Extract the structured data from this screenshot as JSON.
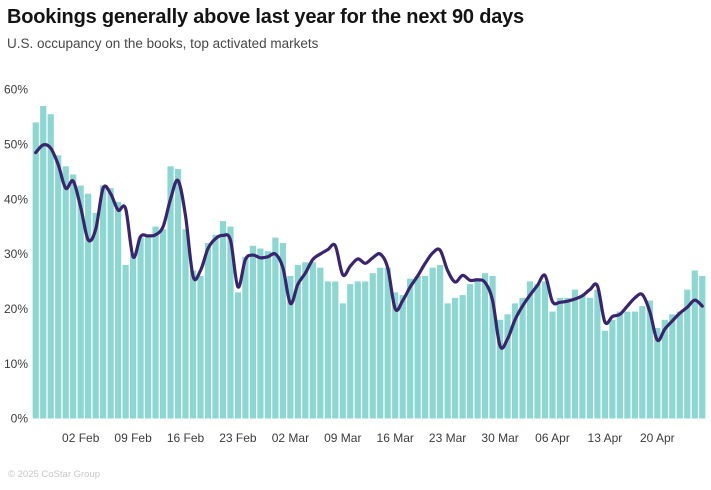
{
  "header": {
    "title": "Bookings generally above last year for the next 90 days",
    "subtitle": "U.S. occupancy on the books, top activated markets"
  },
  "footer": {
    "copyright": "© 2025 CoStar Group"
  },
  "colors": {
    "background": "#ffffff",
    "bar": "#8CD7D1",
    "line": "#3A2470",
    "title_text": "#141414",
    "subtitle_text": "#474747",
    "axis_text": "#3c3c3c",
    "footer_text": "#c6c6c6"
  },
  "chart_data": {
    "type": "combo",
    "title": "Bookings generally above last year for the next 90 days",
    "subtitle": "U.S. occupancy on the books, top activated markets",
    "xlabel": "",
    "ylabel": "",
    "ylim": [
      0,
      60
    ],
    "grid": false,
    "legend": false,
    "y_ticks": [
      0,
      10,
      20,
      30,
      40,
      50,
      60
    ],
    "y_tick_labels": [
      "0%",
      "10%",
      "20%",
      "30%",
      "40%",
      "50%",
      "60%"
    ],
    "x_tick_indices": [
      6,
      13,
      20,
      27,
      34,
      41,
      48,
      55,
      62,
      69,
      76,
      83
    ],
    "x_tick_labels": [
      "02 Feb",
      "09 Feb",
      "16 Feb",
      "23 Feb",
      "02 Mar",
      "09 Mar",
      "16 Mar",
      "23 Mar",
      "30 Mar",
      "06 Apr",
      "13 Apr",
      "20 Apr"
    ],
    "categories": [
      "27 Jan",
      "28 Jan",
      "29 Jan",
      "30 Jan",
      "31 Jan",
      "01 Feb",
      "02 Feb",
      "03 Feb",
      "04 Feb",
      "05 Feb",
      "06 Feb",
      "07 Feb",
      "08 Feb",
      "09 Feb",
      "10 Feb",
      "11 Feb",
      "12 Feb",
      "13 Feb",
      "14 Feb",
      "15 Feb",
      "16 Feb",
      "17 Feb",
      "18 Feb",
      "19 Feb",
      "20 Feb",
      "21 Feb",
      "22 Feb",
      "23 Feb",
      "24 Feb",
      "25 Feb",
      "26 Feb",
      "27 Feb",
      "28 Feb",
      "01 Mar",
      "02 Mar",
      "03 Mar",
      "04 Mar",
      "05 Mar",
      "06 Mar",
      "07 Mar",
      "08 Mar",
      "09 Mar",
      "10 Mar",
      "11 Mar",
      "12 Mar",
      "13 Mar",
      "14 Mar",
      "15 Mar",
      "16 Mar",
      "17 Mar",
      "18 Mar",
      "19 Mar",
      "20 Mar",
      "21 Mar",
      "22 Mar",
      "23 Mar",
      "24 Mar",
      "25 Mar",
      "26 Mar",
      "27 Mar",
      "28 Mar",
      "29 Mar",
      "30 Mar",
      "31 Mar",
      "01 Apr",
      "02 Apr",
      "03 Apr",
      "04 Apr",
      "05 Apr",
      "06 Apr",
      "07 Apr",
      "08 Apr",
      "09 Apr",
      "10 Apr",
      "11 Apr",
      "12 Apr",
      "13 Apr",
      "14 Apr",
      "15 Apr",
      "16 Apr",
      "17 Apr",
      "18 Apr",
      "19 Apr",
      "20 Apr",
      "21 Apr",
      "22 Apr",
      "23 Apr",
      "24 Apr",
      "25 Apr",
      "26 Apr"
    ],
    "series": [
      {
        "name": "occupancy_on_books_bars",
        "render": "bar",
        "unit": "%",
        "values": [
          54,
          57,
          55.5,
          48,
          46,
          44.5,
          42.5,
          41,
          37.5,
          42.5,
          42,
          39.5,
          28,
          30,
          33,
          33.5,
          35,
          34.5,
          46,
          45.5,
          34.5,
          27,
          26,
          32,
          33.5,
          36,
          35,
          23,
          29.5,
          31.5,
          31,
          30.5,
          33,
          32,
          26,
          28,
          28.5,
          28.5,
          27.5,
          25,
          25,
          21,
          24.5,
          25,
          25,
          26.5,
          27.5,
          27.5,
          23,
          22.5,
          25.5,
          26,
          26,
          27.5,
          28,
          21,
          22,
          22.5,
          24.5,
          25.5,
          26.5,
          26,
          18,
          19,
          21,
          22,
          25,
          24.5,
          25,
          19.5,
          22,
          22,
          23.5,
          22.5,
          22,
          23.5,
          16,
          18,
          19.5,
          19.5,
          19.5,
          20.5,
          21.5,
          16.5,
          18,
          19,
          19.5,
          23.5,
          27,
          26
        ]
      },
      {
        "name": "last_year_trend_line",
        "render": "line",
        "unit": "%",
        "values": [
          48.5,
          49.9,
          49.3,
          46.3,
          42,
          43.3,
          38.5,
          32.6,
          34.5,
          42,
          41,
          38,
          38.3,
          29.5,
          33.2,
          33.3,
          33.5,
          35,
          40,
          43.4,
          37,
          26,
          27,
          31,
          32.8,
          33.4,
          32.5,
          24,
          29,
          29.8,
          29.3,
          29.5,
          30,
          27.5,
          21,
          24.5,
          26.5,
          29,
          30,
          30.8,
          31.5,
          26.2,
          27.8,
          29.1,
          28.3,
          29.3,
          30,
          27.5,
          20,
          21.5,
          24,
          26,
          28.3,
          30.2,
          30.7,
          27,
          24.9,
          26.1,
          25.2,
          25.3,
          24.8,
          21.5,
          13.2,
          14.5,
          18,
          20.5,
          22.5,
          24.3,
          26.1,
          21.3,
          21.2,
          21.4,
          21.8,
          22.4,
          23.5,
          24.2,
          17.6,
          18.6,
          19,
          20.5,
          22,
          22.6,
          19.5,
          14.3,
          16.3,
          17.8,
          19.2,
          20.3,
          21.6,
          20.5
        ]
      }
    ]
  }
}
